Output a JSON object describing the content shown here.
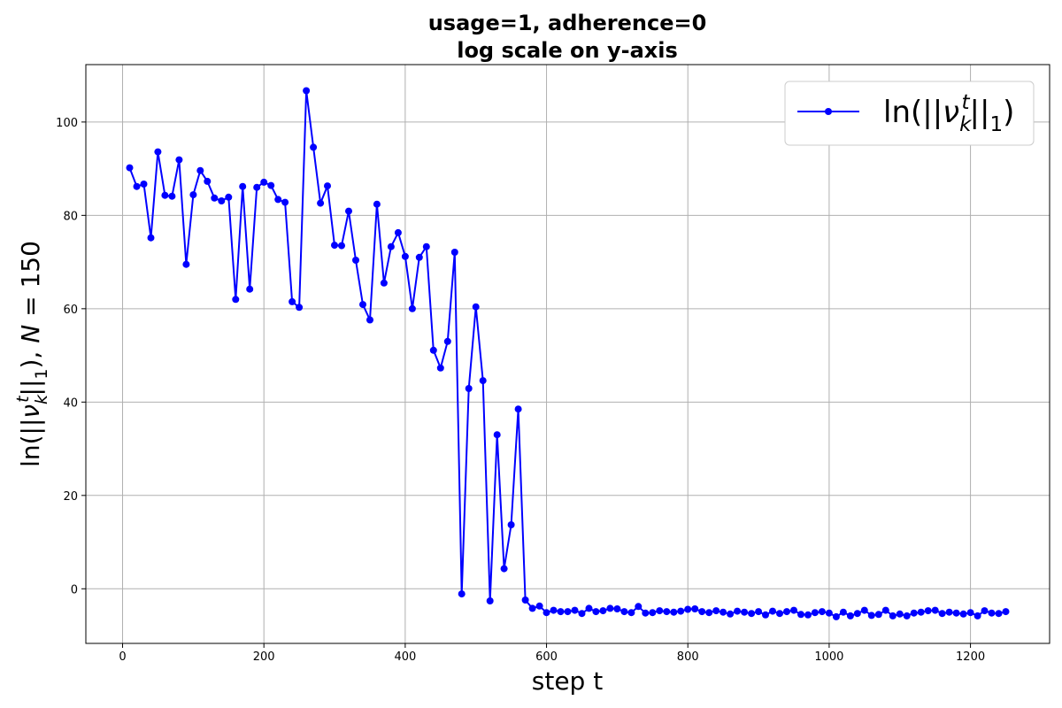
{
  "chart_data": {
    "type": "line",
    "title_line1": "usage=1, adherence=0",
    "title_line2": "log scale on y-axis",
    "xlabel": "step t",
    "ylabel": "ln(||ν_k^t||_1), N = 150",
    "xlim": [
      -52,
      1312
    ],
    "ylim": [
      -11.7,
      112.3
    ],
    "xticks": [
      0,
      200,
      400,
      600,
      800,
      1000,
      1200
    ],
    "yticks": [
      0,
      20,
      40,
      60,
      80,
      100
    ],
    "grid": true,
    "legend_position": "top-right",
    "series": [
      {
        "name": "ln(||ν_k^t||_1)",
        "color": "#0000ff",
        "marker": "circle",
        "x": [
          10,
          20,
          30,
          40,
          50,
          60,
          70,
          80,
          90,
          100,
          110,
          120,
          130,
          140,
          150,
          160,
          170,
          180,
          190,
          200,
          210,
          220,
          230,
          240,
          250,
          260,
          270,
          280,
          290,
          300,
          310,
          320,
          330,
          340,
          350,
          360,
          370,
          380,
          390,
          400,
          410,
          420,
          430,
          440,
          450,
          460,
          470,
          480,
          490,
          500,
          510,
          520,
          530,
          540,
          550,
          560,
          570,
          580,
          590,
          600,
          610,
          620,
          630,
          640,
          650,
          660,
          670,
          680,
          690,
          700,
          710,
          720,
          730,
          740,
          750,
          760,
          770,
          780,
          790,
          800,
          810,
          820,
          830,
          840,
          850,
          860,
          870,
          880,
          890,
          900,
          910,
          920,
          930,
          940,
          950,
          960,
          970,
          980,
          990,
          1000,
          1010,
          1020,
          1030,
          1040,
          1050,
          1060,
          1070,
          1080,
          1090,
          1100,
          1110,
          1120,
          1130,
          1140,
          1150,
          1160,
          1170,
          1180,
          1190,
          1200,
          1210,
          1220,
          1230,
          1240,
          1250
        ],
        "y": [
          90.2,
          86.2,
          86.7,
          75.2,
          93.6,
          84.3,
          84.1,
          91.9,
          69.5,
          84.4,
          89.6,
          87.3,
          83.7,
          83.1,
          83.9,
          62.0,
          86.2,
          64.2,
          86.0,
          87.1,
          86.4,
          83.4,
          82.8,
          61.5,
          60.3,
          106.7,
          94.6,
          82.6,
          86.3,
          73.6,
          73.5,
          80.9,
          70.4,
          60.9,
          57.6,
          82.4,
          65.5,
          73.3,
          76.3,
          71.2,
          60.0,
          71.0,
          73.3,
          51.1,
          47.3,
          53.0,
          72.1,
          -1.1,
          42.9,
          60.4,
          44.6,
          -2.6,
          33.0,
          4.3,
          13.7,
          38.5,
          -2.4,
          -4.2,
          -3.7,
          -5.1,
          -4.6,
          -4.9,
          -4.9,
          -4.6,
          -5.3,
          -4.2,
          -4.9,
          -4.7,
          -4.2,
          -4.3,
          -4.9,
          -5.1,
          -3.8,
          -5.2,
          -5.1,
          -4.7,
          -4.9,
          -5.0,
          -4.8,
          -4.4,
          -4.3,
          -4.9,
          -5.1,
          -4.7,
          -5.0,
          -5.4,
          -4.8,
          -5.0,
          -5.3,
          -4.9,
          -5.6,
          -4.8,
          -5.3,
          -4.9,
          -4.6,
          -5.5,
          -5.6,
          -5.1,
          -4.9,
          -5.2,
          -6.0,
          -5.0,
          -5.8,
          -5.3,
          -4.6,
          -5.7,
          -5.5,
          -4.6,
          -5.8,
          -5.4,
          -5.8,
          -5.2,
          -5.0,
          -4.7,
          -4.6,
          -5.3,
          -5.0,
          -5.2,
          -5.4,
          -5.1,
          -5.8,
          -4.7,
          -5.2,
          -5.3,
          -4.9
        ]
      }
    ]
  }
}
